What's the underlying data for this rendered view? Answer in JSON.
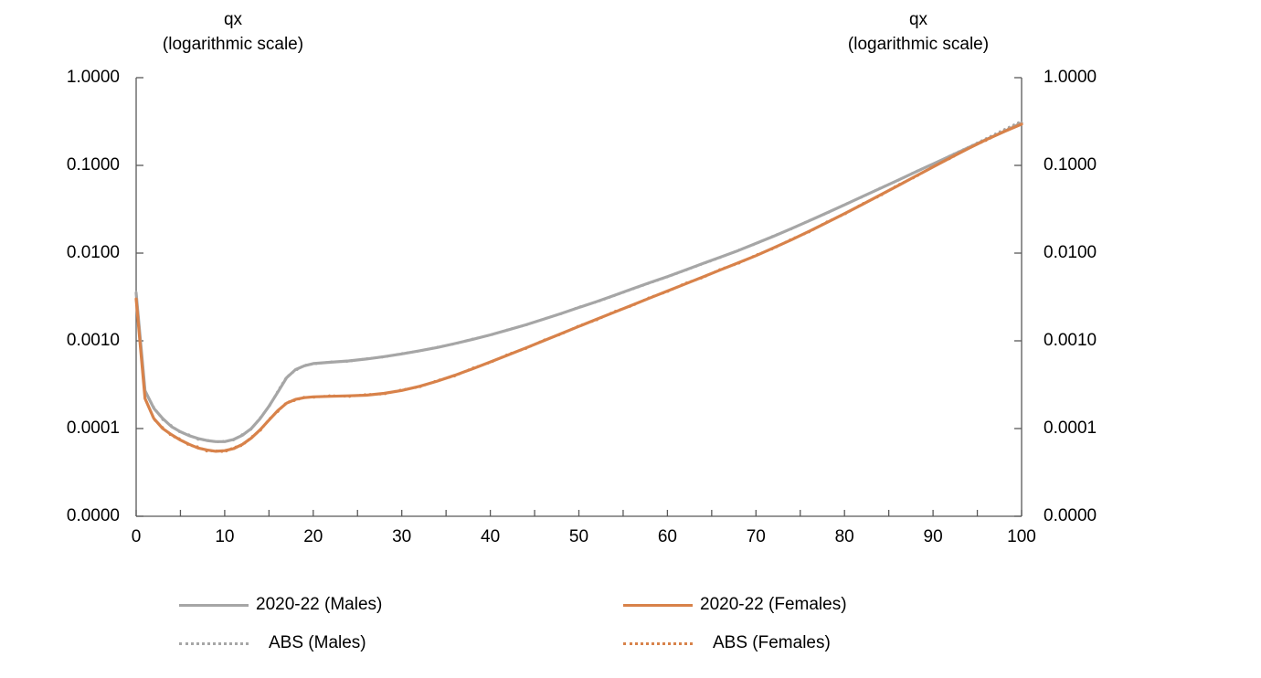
{
  "chart_data": {
    "type": "line",
    "title": "",
    "x_axis": {
      "label": "",
      "min": 0,
      "max": 100,
      "major_tick_labels": [
        "0",
        "10",
        "20",
        "30",
        "40",
        "50",
        "60",
        "70",
        "80",
        "90",
        "100"
      ],
      "minor_tick_step": 5
    },
    "y_axis": {
      "scale": "logarithmic",
      "min": 1e-05,
      "max": 1.0,
      "tick_labels": [
        "1.0000",
        "0.1000",
        "0.0100",
        "0.0010",
        "0.0001",
        "0.0000"
      ],
      "left_title": "qx\n(logarithmic scale)",
      "right_title": "qx\n(logarithmic scale)",
      "grid": "off"
    },
    "colors": {
      "males": "#A6A6A6",
      "females": "#D8824A",
      "axis": "#595959",
      "text": "#000000"
    },
    "legend": [
      {
        "label": "2020-22 (Males)",
        "color": "#A6A6A6",
        "line_style": "solid"
      },
      {
        "label": "2020-22 (Females)",
        "color": "#D8824A",
        "line_style": "solid"
      },
      {
        "label": "ABS (Males)",
        "color": "#A6A6A6",
        "line_style": "dotted"
      },
      {
        "label": "ABS (Females)",
        "color": "#D8824A",
        "line_style": "dotted"
      }
    ],
    "series": [
      {
        "name": "ABS (Males)",
        "color": "#A6A6A6",
        "style": "dotted",
        "points": [
          [
            0,
            0.0036
          ],
          [
            1,
            0.00026
          ],
          [
            2,
            0.000175
          ],
          [
            3,
            0.000126
          ],
          [
            4,
            0.000108
          ],
          [
            5,
            9e-05
          ],
          [
            6,
            8.5e-05
          ],
          [
            7,
            7.5e-05
          ],
          [
            8,
            7.4e-05
          ],
          [
            9,
            7e-05
          ],
          [
            10,
            7.2e-05
          ],
          [
            11,
            7.4e-05
          ],
          [
            12,
            8.6e-05
          ],
          [
            13,
            9.8e-05
          ],
          [
            14,
            0.000133
          ],
          [
            15,
            0.000176
          ],
          [
            16,
            0.000268
          ],
          [
            17,
            0.00039
          ],
          [
            18,
            0.000458
          ],
          [
            19,
            0.000528
          ],
          [
            20,
            0.000542
          ],
          [
            22,
            0.000578
          ],
          [
            24,
            0.000582
          ],
          [
            26,
            0.000628
          ],
          [
            28,
            0.000653
          ],
          [
            30,
            0.000718
          ],
          [
            32,
            0.000764
          ],
          [
            34,
            0.000849
          ],
          [
            36,
            0.000921
          ],
          [
            38,
            0.001052
          ],
          [
            40,
            0.001158
          ],
          [
            42,
            0.001345
          ],
          [
            44,
            0.001506
          ],
          [
            46,
            0.001779
          ],
          [
            48,
            0.00203
          ],
          [
            50,
            0.002427
          ],
          [
            52,
            0.002772
          ],
          [
            54,
            0.003267
          ],
          [
            56,
            0.003864
          ],
          [
            58,
            0.004554
          ],
          [
            60,
            0.005351
          ],
          [
            62,
            0.006336
          ],
          [
            64,
            0.007532
          ],
          [
            66,
            0.008913
          ],
          [
            68,
            0.010807
          ],
          [
            70,
            0.012774
          ],
          [
            72,
            0.015758
          ],
          [
            74,
            0.018814
          ],
          [
            76,
            0.023533
          ],
          [
            78,
            0.028418
          ],
          [
            80,
            0.035855
          ],
          [
            82,
            0.04356
          ],
          [
            84,
            0.05505
          ],
          [
            86,
            0.06682
          ],
          [
            88,
            0.08484
          ],
          [
            90,
            0.10296
          ],
          [
            92,
            0.13029
          ],
          [
            94,
            0.1616
          ],
          [
            96,
            0.20291
          ],
          [
            98,
            0.25515
          ],
          [
            100,
            0.32
          ]
        ]
      },
      {
        "name": "ABS (Females)",
        "color": "#D8824A",
        "style": "dotted",
        "points": [
          [
            0,
            0.0029
          ],
          [
            1,
            0.000224
          ],
          [
            2,
            0.000127
          ],
          [
            3,
            0.000103
          ],
          [
            4,
            8.2e-05
          ],
          [
            5,
            7.6e-05
          ],
          [
            6,
            6.4e-05
          ],
          [
            7,
            6.2e-05
          ],
          [
            8,
            5.5e-05
          ],
          [
            9,
            5.6e-05
          ],
          [
            10,
            5.4e-05
          ],
          [
            11,
            6.1e-05
          ],
          [
            12,
            6.4e-05
          ],
          [
            13,
            8e-05
          ],
          [
            14,
            9.4e-05
          ],
          [
            15,
            0.000128
          ],
          [
            16,
            0.000155
          ],
          [
            17,
            0.0002
          ],
          [
            18,
            0.000209
          ],
          [
            19,
            0.000229
          ],
          [
            20,
            0.000226
          ],
          [
            22,
            0.000238
          ],
          [
            24,
            0.000231
          ],
          [
            26,
            0.000245
          ],
          [
            28,
            0.000247
          ],
          [
            30,
            0.000277
          ],
          [
            32,
            0.000297
          ],
          [
            34,
            0.000354
          ],
          [
            36,
            0.000397
          ],
          [
            38,
            0.00049
          ],
          [
            40,
            0.000564
          ],
          [
            42,
            0.000704
          ],
          [
            44,
            0.000813
          ],
          [
            46,
            0.00102
          ],
          [
            48,
            0.001186
          ],
          [
            50,
            0.00149
          ],
          [
            52,
            0.001725
          ],
          [
            54,
            0.002163
          ],
          [
            56,
            0.0025
          ],
          [
            58,
            0.003132
          ],
          [
            60,
            0.003626
          ],
          [
            62,
            0.00454
          ],
          [
            64,
            0.005243
          ],
          [
            66,
            0.006579
          ],
          [
            68,
            0.007595
          ],
          [
            70,
            0.009537
          ],
          [
            72,
            0.01127
          ],
          [
            74,
            0.014484
          ],
          [
            76,
            0.017346
          ],
          [
            78,
            0.022746
          ],
          [
            80,
            0.027636
          ],
          [
            82,
            0.036516
          ],
          [
            84,
            0.044786
          ],
          [
            86,
            0.05967
          ],
          [
            88,
            0.0735
          ],
          [
            90,
            0.09792
          ],
          [
            92,
            0.12054
          ],
          [
            94,
            0.15912
          ],
          [
            96,
            0.19208
          ],
          [
            98,
            0.24684
          ],
          [
            100,
            0.31
          ]
        ]
      },
      {
        "name": "2020-22 (Males)",
        "color": "#A6A6A6",
        "style": "solid",
        "points": [
          [
            0,
            0.0035
          ],
          [
            1,
            0.00027
          ],
          [
            2,
            0.00017
          ],
          [
            3,
            0.00013
          ],
          [
            4,
            0.000105
          ],
          [
            5,
            9.2e-05
          ],
          [
            6,
            8.3e-05
          ],
          [
            7,
            7.7e-05
          ],
          [
            8,
            7.3e-05
          ],
          [
            9,
            7.1e-05
          ],
          [
            10,
            7.1e-05
          ],
          [
            11,
            7.5e-05
          ],
          [
            12,
            8.4e-05
          ],
          [
            13,
            0.0001
          ],
          [
            14,
            0.00013
          ],
          [
            15,
            0.00018
          ],
          [
            16,
            0.00026
          ],
          [
            17,
            0.00038
          ],
          [
            18,
            0.00047
          ],
          [
            19,
            0.00052
          ],
          [
            20,
            0.00055
          ],
          [
            22,
            0.00057
          ],
          [
            24,
            0.00059
          ],
          [
            26,
            0.00062
          ],
          [
            28,
            0.00066
          ],
          [
            30,
            0.00071
          ],
          [
            32,
            0.00077
          ],
          [
            34,
            0.00084
          ],
          [
            36,
            0.00093
          ],
          [
            38,
            0.00104
          ],
          [
            40,
            0.00117
          ],
          [
            42,
            0.00133
          ],
          [
            44,
            0.00152
          ],
          [
            46,
            0.00176
          ],
          [
            48,
            0.00205
          ],
          [
            50,
            0.0024
          ],
          [
            52,
            0.0028
          ],
          [
            54,
            0.0033
          ],
          [
            56,
            0.0039
          ],
          [
            58,
            0.0046
          ],
          [
            60,
            0.0054
          ],
          [
            62,
            0.0064
          ],
          [
            64,
            0.0076
          ],
          [
            66,
            0.009
          ],
          [
            68,
            0.0107
          ],
          [
            70,
            0.0129
          ],
          [
            72,
            0.0156
          ],
          [
            74,
            0.019
          ],
          [
            76,
            0.0233
          ],
          [
            78,
            0.0287
          ],
          [
            80,
            0.0355
          ],
          [
            82,
            0.044
          ],
          [
            84,
            0.0545
          ],
          [
            86,
            0.0675
          ],
          [
            88,
            0.084
          ],
          [
            90,
            0.104
          ],
          [
            92,
            0.129
          ],
          [
            94,
            0.16
          ],
          [
            96,
            0.197
          ],
          [
            98,
            0.243
          ],
          [
            100,
            0.305
          ]
        ]
      },
      {
        "name": "2020-22 (Females)",
        "color": "#D8824A",
        "style": "solid",
        "points": [
          [
            0,
            0.003
          ],
          [
            1,
            0.00022
          ],
          [
            2,
            0.00013
          ],
          [
            3,
            0.0001
          ],
          [
            4,
            8.5e-05
          ],
          [
            5,
            7.4e-05
          ],
          [
            6,
            6.6e-05
          ],
          [
            7,
            6e-05
          ],
          [
            8,
            5.7e-05
          ],
          [
            9,
            5.5e-05
          ],
          [
            10,
            5.6e-05
          ],
          [
            11,
            5.9e-05
          ],
          [
            12,
            6.6e-05
          ],
          [
            13,
            7.8e-05
          ],
          [
            14,
            9.7e-05
          ],
          [
            15,
            0.000125
          ],
          [
            16,
            0.00016
          ],
          [
            17,
            0.000195
          ],
          [
            18,
            0.000215
          ],
          [
            19,
            0.000225
          ],
          [
            20,
            0.00023
          ],
          [
            22,
            0.000233
          ],
          [
            24,
            0.000236
          ],
          [
            26,
            0.00024
          ],
          [
            28,
            0.000252
          ],
          [
            30,
            0.000272
          ],
          [
            32,
            0.000303
          ],
          [
            34,
            0.000347
          ],
          [
            36,
            0.000405
          ],
          [
            38,
            0.00048
          ],
          [
            40,
            0.000575
          ],
          [
            42,
            0.00069
          ],
          [
            44,
            0.00083
          ],
          [
            46,
            0.001
          ],
          [
            48,
            0.00121
          ],
          [
            50,
            0.00146
          ],
          [
            52,
            0.00176
          ],
          [
            54,
            0.00212
          ],
          [
            56,
            0.00255
          ],
          [
            58,
            0.00307
          ],
          [
            60,
            0.0037
          ],
          [
            62,
            0.00445
          ],
          [
            64,
            0.00535
          ],
          [
            66,
            0.00645
          ],
          [
            68,
            0.00775
          ],
          [
            70,
            0.00935
          ],
          [
            72,
            0.0115
          ],
          [
            74,
            0.0142
          ],
          [
            76,
            0.0177
          ],
          [
            78,
            0.0223
          ],
          [
            80,
            0.0282
          ],
          [
            82,
            0.0358
          ],
          [
            84,
            0.0457
          ],
          [
            86,
            0.0585
          ],
          [
            88,
            0.075
          ],
          [
            90,
            0.096
          ],
          [
            92,
            0.123
          ],
          [
            94,
            0.156
          ],
          [
            96,
            0.196
          ],
          [
            98,
            0.242
          ],
          [
            100,
            0.295
          ]
        ]
      }
    ]
  }
}
